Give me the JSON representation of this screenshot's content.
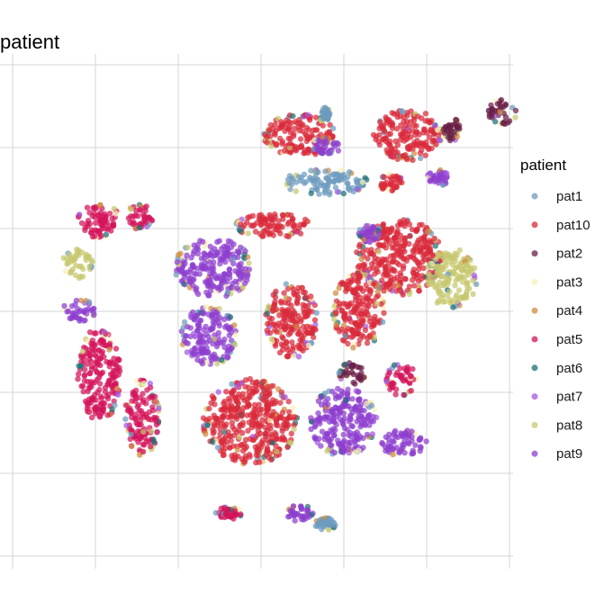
{
  "chart_data": {
    "type": "scatter",
    "title": "patient",
    "xlabel": "",
    "ylabel": "",
    "grid": true,
    "legend": {
      "title": "patient",
      "position": "right"
    },
    "series": [
      {
        "name": "pat1",
        "color": "#6e9bbf"
      },
      {
        "name": "pat10",
        "color": "#d92a3a"
      },
      {
        "name": "pat2",
        "color": "#6a1f47"
      },
      {
        "name": "pat3",
        "color": "#f5f0b8"
      },
      {
        "name": "pat4",
        "color": "#d08a3e"
      },
      {
        "name": "pat5",
        "color": "#d4145a"
      },
      {
        "name": "pat6",
        "color": "#1f6f74"
      },
      {
        "name": "pat7",
        "color": "#a35ae0"
      },
      {
        "name": "pat8",
        "color": "#c6c86e"
      },
      {
        "name": "pat9",
        "color": "#8d3fcf"
      }
    ],
    "clusters": [
      {
        "series": "pat10",
        "cx": 0.18,
        "cy": 0.82,
        "rx": 0.17,
        "ry": 0.1
      },
      {
        "series": "pat10",
        "cx": 0.68,
        "cy": 0.82,
        "rx": 0.16,
        "ry": 0.12
      },
      {
        "series": "pat1",
        "cx": 0.3,
        "cy": 0.6,
        "rx": 0.2,
        "ry": 0.06
      },
      {
        "series": "pat9",
        "cx": 0.3,
        "cy": 0.77,
        "rx": 0.07,
        "ry": 0.04
      },
      {
        "series": "pat1",
        "cx": 0.3,
        "cy": 0.92,
        "rx": 0.02,
        "ry": 0.03
      },
      {
        "series": "pat2",
        "cx": 0.88,
        "cy": 0.85,
        "rx": 0.04,
        "ry": 0.06
      },
      {
        "series": "pat2",
        "cx": 1.12,
        "cy": 0.93,
        "rx": 0.07,
        "ry": 0.06
      },
      {
        "series": "pat9",
        "cx": 0.82,
        "cy": 0.62,
        "rx": 0.05,
        "ry": 0.04
      },
      {
        "series": "pat10",
        "cx": 0.6,
        "cy": 0.6,
        "rx": 0.06,
        "ry": 0.04
      },
      {
        "series": "pat5",
        "cx": -0.75,
        "cy": 0.42,
        "rx": 0.1,
        "ry": 0.08
      },
      {
        "series": "pat5",
        "cx": -0.56,
        "cy": 0.44,
        "rx": 0.06,
        "ry": 0.06
      },
      {
        "series": "pat8",
        "cx": -0.85,
        "cy": 0.22,
        "rx": 0.07,
        "ry": 0.07
      },
      {
        "series": "pat9",
        "cx": -0.84,
        "cy": 0.0,
        "rx": 0.08,
        "ry": 0.05
      },
      {
        "series": "pat9",
        "cx": -0.22,
        "cy": 0.2,
        "rx": 0.18,
        "ry": 0.14
      },
      {
        "series": "pat9",
        "cx": -0.24,
        "cy": -0.12,
        "rx": 0.13,
        "ry": 0.14
      },
      {
        "series": "pat10",
        "cx": 0.05,
        "cy": 0.4,
        "rx": 0.18,
        "ry": 0.06
      },
      {
        "series": "pat10",
        "cx": 0.14,
        "cy": -0.05,
        "rx": 0.12,
        "ry": 0.18
      },
      {
        "series": "pat10",
        "cx": 0.64,
        "cy": 0.25,
        "rx": 0.2,
        "ry": 0.18
      },
      {
        "series": "pat10",
        "cx": 0.45,
        "cy": 0.0,
        "rx": 0.12,
        "ry": 0.18
      },
      {
        "series": "pat8",
        "cx": 0.88,
        "cy": 0.15,
        "rx": 0.12,
        "ry": 0.14
      },
      {
        "series": "pat2",
        "cx": 0.42,
        "cy": -0.3,
        "rx": 0.06,
        "ry": 0.06
      },
      {
        "series": "pat9",
        "cx": 0.5,
        "cy": 0.36,
        "rx": 0.05,
        "ry": 0.04
      },
      {
        "series": "pat5",
        "cx": -0.75,
        "cy": -0.3,
        "rx": 0.1,
        "ry": 0.22
      },
      {
        "series": "pat5",
        "cx": -0.55,
        "cy": -0.5,
        "rx": 0.08,
        "ry": 0.18
      },
      {
        "series": "pat10",
        "cx": -0.05,
        "cy": -0.52,
        "rx": 0.22,
        "ry": 0.2
      },
      {
        "series": "pat9",
        "cx": 0.38,
        "cy": -0.52,
        "rx": 0.16,
        "ry": 0.16
      },
      {
        "series": "pat5",
        "cx": 0.65,
        "cy": -0.32,
        "rx": 0.07,
        "ry": 0.08
      },
      {
        "series": "pat9",
        "cx": 0.65,
        "cy": -0.62,
        "rx": 0.12,
        "ry": 0.06
      },
      {
        "series": "pat5",
        "cx": -0.15,
        "cy": -0.95,
        "rx": 0.06,
        "ry": 0.03
      },
      {
        "series": "pat9",
        "cx": 0.18,
        "cy": -0.95,
        "rx": 0.06,
        "ry": 0.04
      },
      {
        "series": "pat1",
        "cx": 0.3,
        "cy": -1.0,
        "rx": 0.05,
        "ry": 0.03
      }
    ],
    "background_series": [
      "pat8",
      "pat7",
      "pat6",
      "pat1",
      "pat3",
      "pat4"
    ]
  }
}
